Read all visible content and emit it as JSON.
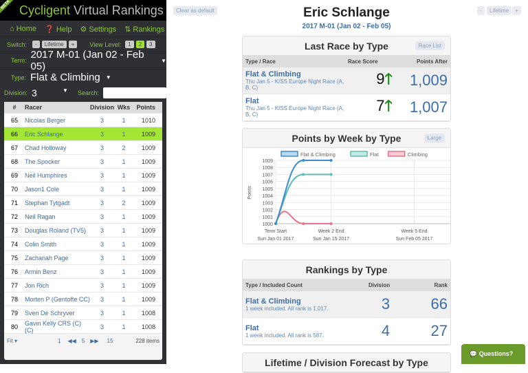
{
  "brand": {
    "badge": "BETA",
    "name_a": "Cycligent",
    "name_b": "Virtual Rankings"
  },
  "nav": [
    {
      "icon": "home-icon",
      "label": "Home"
    },
    {
      "icon": "help-icon",
      "label": "Help"
    },
    {
      "icon": "gear-icon",
      "label": "Settings"
    },
    {
      "icon": "sort-icon",
      "label": "Rankings"
    }
  ],
  "switch": {
    "label": "Switch:",
    "minus": "-",
    "value": "Lifetime",
    "plus": "+",
    "view_label": "View Level:",
    "levels": [
      "1",
      "2",
      "3"
    ],
    "active_level": "2"
  },
  "term": {
    "label": "Term:",
    "value": "2017 M-01 (Jan 02 - Feb 05)"
  },
  "type": {
    "label": "Type:",
    "value": "Flat & Climbing"
  },
  "division": {
    "label": "Division:",
    "value": "3",
    "search_label": "Search:",
    "search_value": ""
  },
  "table": {
    "headers": [
      "#",
      "Racer",
      "Division",
      "Wks",
      "Points"
    ],
    "rows": [
      [
        "65",
        "Nicolas Berger",
        "3",
        "1",
        "1010"
      ],
      [
        "66",
        "Eric Schlange",
        "3",
        "1",
        "1009"
      ],
      [
        "67",
        "Chad Holloway",
        "3",
        "2",
        "1009"
      ],
      [
        "68",
        "The Spocker",
        "3",
        "1",
        "1009"
      ],
      [
        "69",
        "Neil Humphires",
        "3",
        "1",
        "1009"
      ],
      [
        "70",
        "Jason1 Cole",
        "3",
        "1",
        "1009"
      ],
      [
        "71",
        "Stephan Tytgadt",
        "3",
        "2",
        "1009"
      ],
      [
        "72",
        "Neil Ragan",
        "3",
        "1",
        "1009"
      ],
      [
        "73",
        "Douglas Roland (TV5)",
        "3",
        "1",
        "1009"
      ],
      [
        "74",
        "Colin Smith",
        "3",
        "1",
        "1009"
      ],
      [
        "75",
        "Zachariah Page",
        "3",
        "1",
        "1009"
      ],
      [
        "76",
        "Armin Benz",
        "3",
        "1",
        "1009"
      ],
      [
        "77",
        "Jon Rich",
        "3",
        "1",
        "1009"
      ],
      [
        "78",
        "Morten P (Gentofte CC)",
        "3",
        "1",
        "1009"
      ],
      [
        "79",
        "Sven De Schryver",
        "3",
        "1",
        "1008"
      ],
      [
        "80",
        "Gavin Kelly CRS (C) (C)",
        "3",
        "1",
        "1008"
      ]
    ],
    "selected": "66"
  },
  "pager": {
    "fit": "Fit",
    "first": "1",
    "current": "5",
    "last": "15",
    "count": "228 items"
  },
  "top": {
    "clear": "Clear as default",
    "minus": "-",
    "lifetime": "Lifetime",
    "plus": "+"
  },
  "header": {
    "name": "Eric Schlange",
    "term": "2017 M-01 (Jan 02 - Feb 05)"
  },
  "last_race": {
    "title": "Last Race by Type",
    "button": "Race List",
    "cols": [
      "Type / Race",
      "Race Score",
      "Points After"
    ],
    "rows": [
      {
        "type": "Flat & Climbing",
        "race": "Thu Jan 5 - KISS Europe Night Race (A, B, C)",
        "score": "9",
        "points": "1,009"
      },
      {
        "type": "Flat",
        "race": "Thu Jan 5 - KISS Europe Night Race (A, B, C)",
        "score": "7",
        "points": "1,007"
      }
    ]
  },
  "points_card": {
    "title": "Points by Week by Type",
    "button": "Large"
  },
  "chart_data": {
    "type": "line",
    "ylabel": "Points",
    "ylim": [
      1000,
      1009
    ],
    "yticks": [
      "1009",
      "1008",
      "1007",
      "1006",
      "1005",
      "1004",
      "1003",
      "1002",
      "1001",
      "1000"
    ],
    "xticks": [
      {
        "week": 0,
        "l1": "Term Start",
        "l2": "Sun Jan 01 2017"
      },
      {
        "week": 2,
        "l1": "Week 2 End",
        "l2": "Sun Jan 15 2017"
      },
      {
        "week": 5,
        "l1": "Week 5 End",
        "l2": "Sun Feb 05 2017"
      }
    ],
    "x": [
      0,
      1,
      2
    ],
    "legend": "top",
    "series": [
      {
        "name": "Flat & Climbing",
        "color": "#3a8fd0",
        "values": [
          1000,
          1009,
          1009
        ]
      },
      {
        "name": "Flat",
        "color": "#5bbcb0",
        "values": [
          1000,
          1007,
          1007
        ]
      },
      {
        "name": "Climbing",
        "color": "#e8738a",
        "values": [
          1000,
          1000,
          1000
        ]
      }
    ]
  },
  "rankings": {
    "title": "Rankings by Type",
    "cols": [
      "Type / Included Count",
      "Division",
      "Rank"
    ],
    "rows": [
      {
        "type": "Flat & Climbing",
        "note": "1 week included. All rank is 1,017.",
        "division": "3",
        "rank": "66"
      },
      {
        "type": "Flat",
        "note": "1 week included. All rank is 587.",
        "division": "4",
        "rank": "27"
      }
    ]
  },
  "forecast": {
    "title": "Lifetime / Division Forecast by Type"
  },
  "questions": "Questions?"
}
